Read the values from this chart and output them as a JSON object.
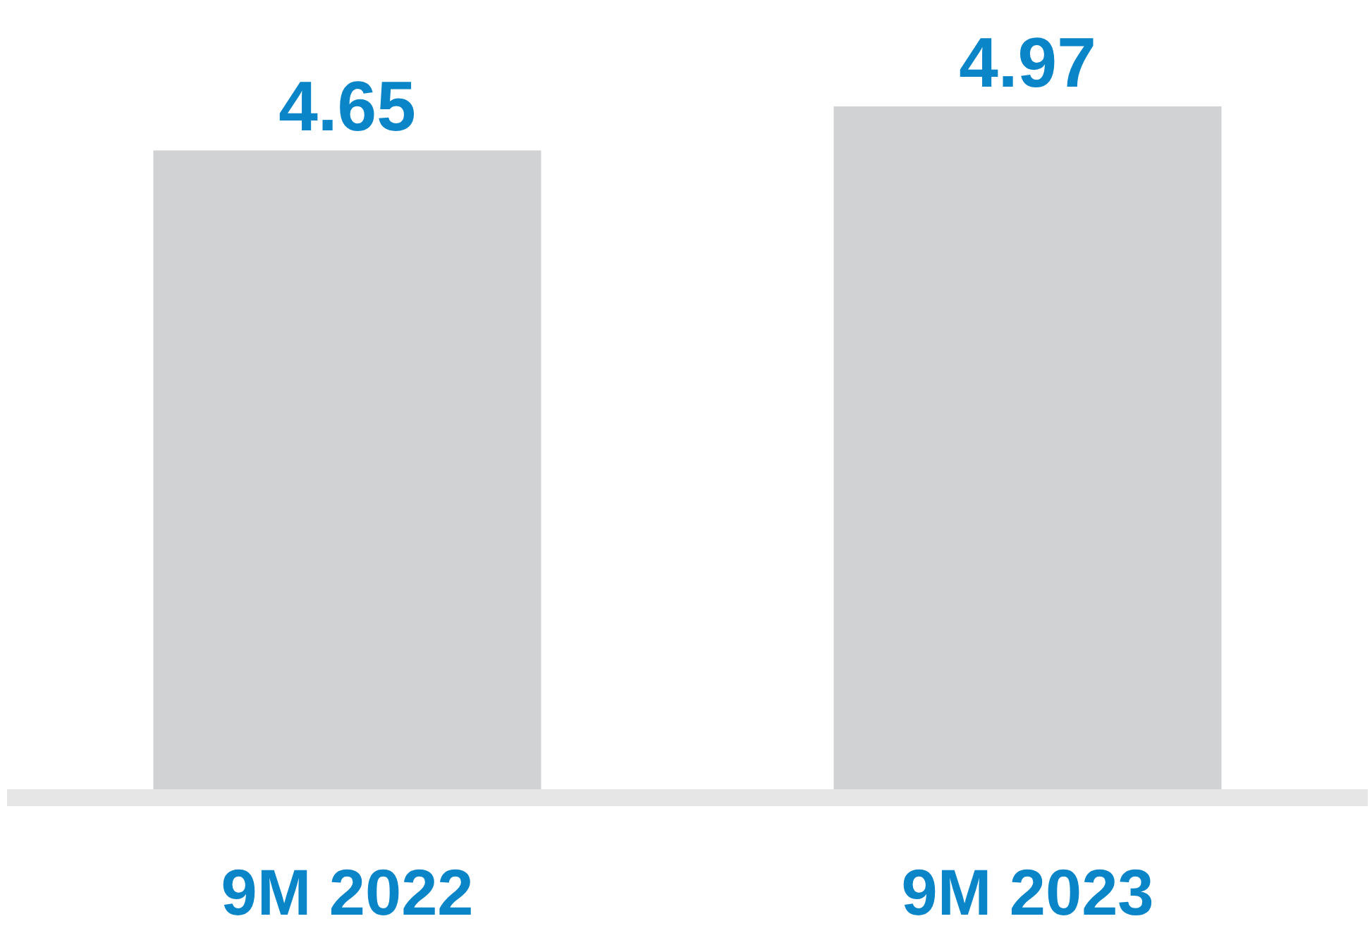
{
  "chart_data": {
    "type": "bar",
    "categories": [
      "9M 2022",
      "9M 2023"
    ],
    "values": [
      4.65,
      4.97
    ],
    "color": "#d1d2d4",
    "data_labels": true
  }
}
